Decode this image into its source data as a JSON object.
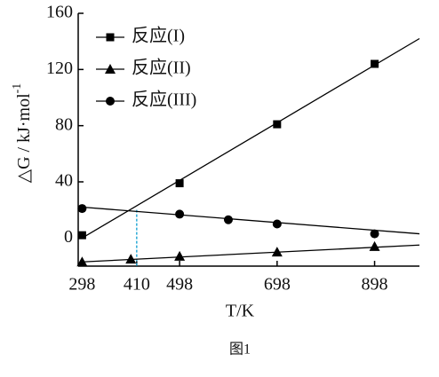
{
  "chart_data": {
    "type": "scatter",
    "xlabel": "T/K",
    "ylabel": "△G / kJ·mol",
    "ylabel_sup": "-1",
    "caption": "图1",
    "xlim": [
      290,
      990
    ],
    "ylim": [
      -20,
      160
    ],
    "xticks": [
      298,
      410,
      498,
      698,
      898
    ],
    "yticks": [
      0,
      40,
      80,
      120,
      160
    ],
    "legend": "upper left",
    "color": "#000000",
    "marker_line_color": "#29a9d6",
    "marker_line": {
      "x": 410,
      "y": 20
    },
    "series": [
      {
        "name": "反应(I)",
        "marker": "square",
        "x": [
          298,
          498,
          698,
          898
        ],
        "values": [
          2,
          39,
          81,
          124
        ],
        "fit": {
          "x": [
            298,
            990
          ],
          "values": [
            0,
            142
          ]
        }
      },
      {
        "name": "反应(II)",
        "marker": "triangle",
        "x": [
          298,
          398,
          498,
          698,
          898
        ],
        "values": [
          -17,
          -15,
          -13,
          -10,
          -6
        ],
        "fit": {
          "x": [
            298,
            990
          ],
          "values": [
            -17,
            -5
          ]
        }
      },
      {
        "name": "反应(III)",
        "marker": "circle",
        "x": [
          298,
          498,
          598,
          698,
          898
        ],
        "values": [
          21,
          17,
          13,
          10,
          3
        ],
        "fit": {
          "x": [
            298,
            990
          ],
          "values": [
            22,
            3
          ]
        }
      }
    ]
  }
}
